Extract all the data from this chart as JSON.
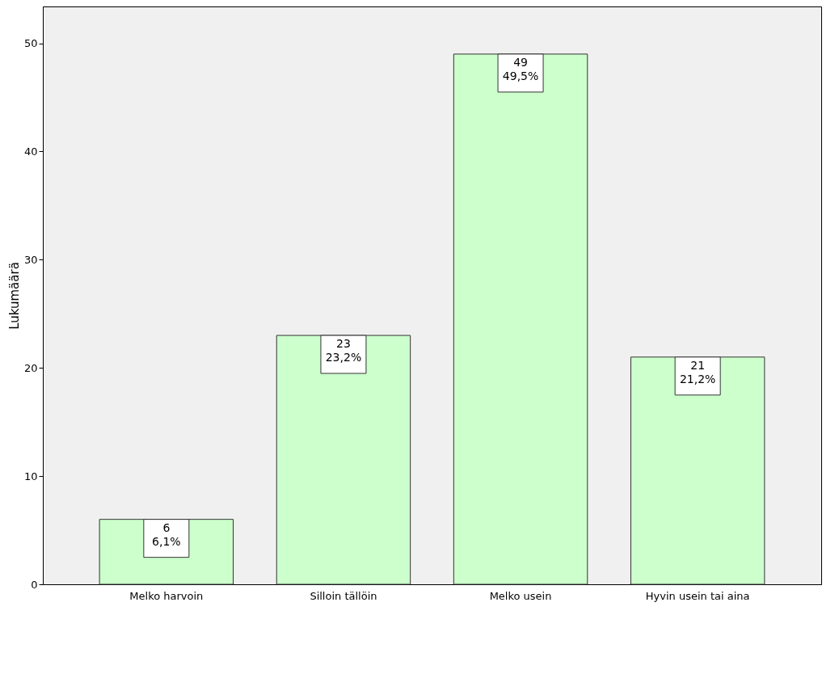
{
  "chart_data": {
    "type": "bar",
    "ylabel": "Lukumäärä",
    "categories": [
      "Melko harvoin",
      "Silloin tällöin",
      "Melko usein",
      "Hyvin usein tai aina"
    ],
    "values": [
      6,
      23,
      49,
      21
    ],
    "value_labels": [
      "6\n6,1%",
      "23\n23,2%",
      "49\n49,5%",
      "21\n21,2%"
    ],
    "color": "#ccffcc",
    "ylim": [
      0,
      53.4
    ],
    "yticks": [
      0,
      10,
      20,
      30,
      40,
      50
    ],
    "grid": false
  }
}
